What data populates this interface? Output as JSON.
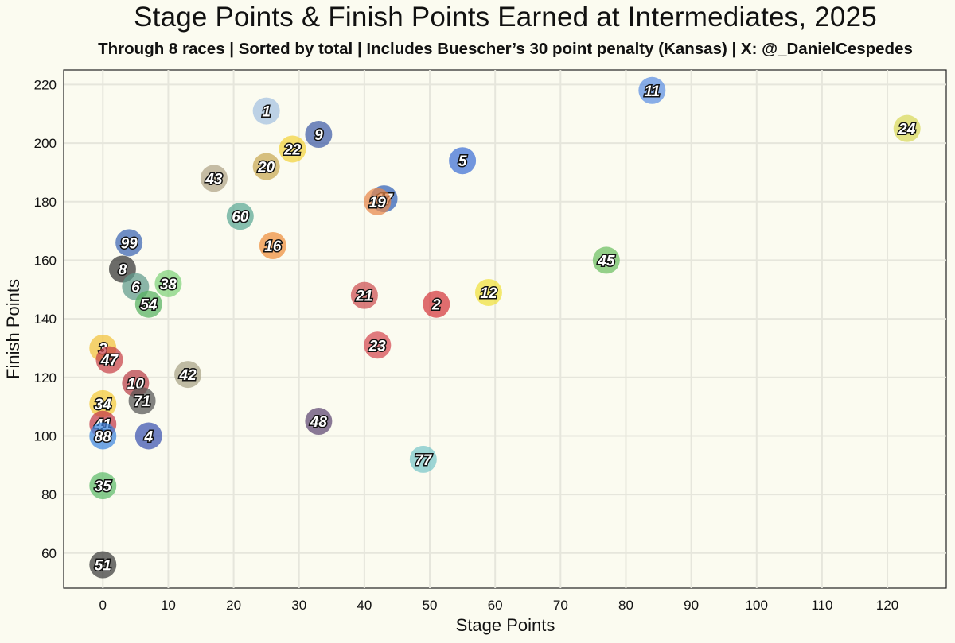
{
  "title": "Stage Points & Finish Points Earned at Intermediates, 2025",
  "subtitle": "Through 8 races | Sorted by total | Includes Buescher’s 30 point penalty (Kansas) | X: @_DanielCespedes",
  "chart_data": {
    "type": "scatter",
    "title": "Stage Points & Finish Points Earned at Intermediates, 2025",
    "subtitle": "Through 8 races | Sorted by total | Includes Buescher’s 30 point penalty (Kansas) | X: @_DanielCespedes",
    "xlabel": "Stage Points",
    "ylabel": "Finish Points",
    "xlim": [
      -6,
      129
    ],
    "ylim": [
      48,
      225
    ],
    "x_ticks": [
      0,
      10,
      20,
      30,
      40,
      50,
      60,
      70,
      80,
      90,
      100,
      110,
      120
    ],
    "y_ticks": [
      60,
      80,
      100,
      120,
      140,
      160,
      180,
      200,
      220
    ],
    "grid": true,
    "legend": "none",
    "points": [
      {
        "label": "11",
        "x": 84,
        "y": 218,
        "color": "#5b8fe3"
      },
      {
        "label": "24",
        "x": 123,
        "y": 205,
        "color": "#d8d85a"
      },
      {
        "label": "1",
        "x": 25,
        "y": 211,
        "color": "#a3c0e0"
      },
      {
        "label": "9",
        "x": 33,
        "y": 203,
        "color": "#3e5ca8"
      },
      {
        "label": "22",
        "x": 29,
        "y": 198,
        "color": "#f2d33c"
      },
      {
        "label": "20",
        "x": 25,
        "y": 192,
        "color": "#c7a852"
      },
      {
        "label": "5",
        "x": 55,
        "y": 194,
        "color": "#3d6fd6"
      },
      {
        "label": "43",
        "x": 17,
        "y": 188,
        "color": "#b0a487"
      },
      {
        "label": "17",
        "x": 43,
        "y": 181,
        "color": "#2f5fb8"
      },
      {
        "label": "19",
        "x": 42,
        "y": 180,
        "color": "#e8874a"
      },
      {
        "label": "60",
        "x": 21,
        "y": 175,
        "color": "#5aa894"
      },
      {
        "label": "16",
        "x": 26,
        "y": 165,
        "color": "#ee8d3a"
      },
      {
        "label": "45",
        "x": 77,
        "y": 160,
        "color": "#6cbf61"
      },
      {
        "label": "99",
        "x": 4,
        "y": 166,
        "color": "#3a64b3"
      },
      {
        "label": "8",
        "x": 3,
        "y": 157,
        "color": "#333333"
      },
      {
        "label": "6",
        "x": 5,
        "y": 151,
        "color": "#5e9a8a"
      },
      {
        "label": "38",
        "x": 10,
        "y": 152,
        "color": "#7fd37a"
      },
      {
        "label": "54",
        "x": 7,
        "y": 145,
        "color": "#56b260"
      },
      {
        "label": "21",
        "x": 40,
        "y": 148,
        "color": "#cd4e50"
      },
      {
        "label": "2",
        "x": 51,
        "y": 145,
        "color": "#d4363c"
      },
      {
        "label": "12",
        "x": 59,
        "y": 149,
        "color": "#f0e03c"
      },
      {
        "label": "23",
        "x": 42,
        "y": 131,
        "color": "#d64851"
      },
      {
        "label": "3",
        "x": 0,
        "y": 130,
        "color": "#f2c23a"
      },
      {
        "label": "47",
        "x": 1,
        "y": 126,
        "color": "#c84148"
      },
      {
        "label": "42",
        "x": 13,
        "y": 121,
        "color": "#a8a285"
      },
      {
        "label": "10",
        "x": 5,
        "y": 118,
        "color": "#b83d46"
      },
      {
        "label": "71",
        "x": 6,
        "y": 112,
        "color": "#555555"
      },
      {
        "label": "34",
        "x": 0,
        "y": 111,
        "color": "#f4c938"
      },
      {
        "label": "41",
        "x": 0,
        "y": 104,
        "color": "#c3394a"
      },
      {
        "label": "88",
        "x": 0,
        "y": 100,
        "color": "#3f87df"
      },
      {
        "label": "4",
        "x": 7,
        "y": 100,
        "color": "#3a52b0"
      },
      {
        "label": "48",
        "x": 33,
        "y": 105,
        "color": "#5d4571"
      },
      {
        "label": "77",
        "x": 49,
        "y": 92,
        "color": "#79c6c9"
      },
      {
        "label": "35",
        "x": 0,
        "y": 83,
        "color": "#5dbb6a"
      },
      {
        "label": "51",
        "x": 0,
        "y": 56,
        "color": "#3a3a3a"
      }
    ]
  }
}
